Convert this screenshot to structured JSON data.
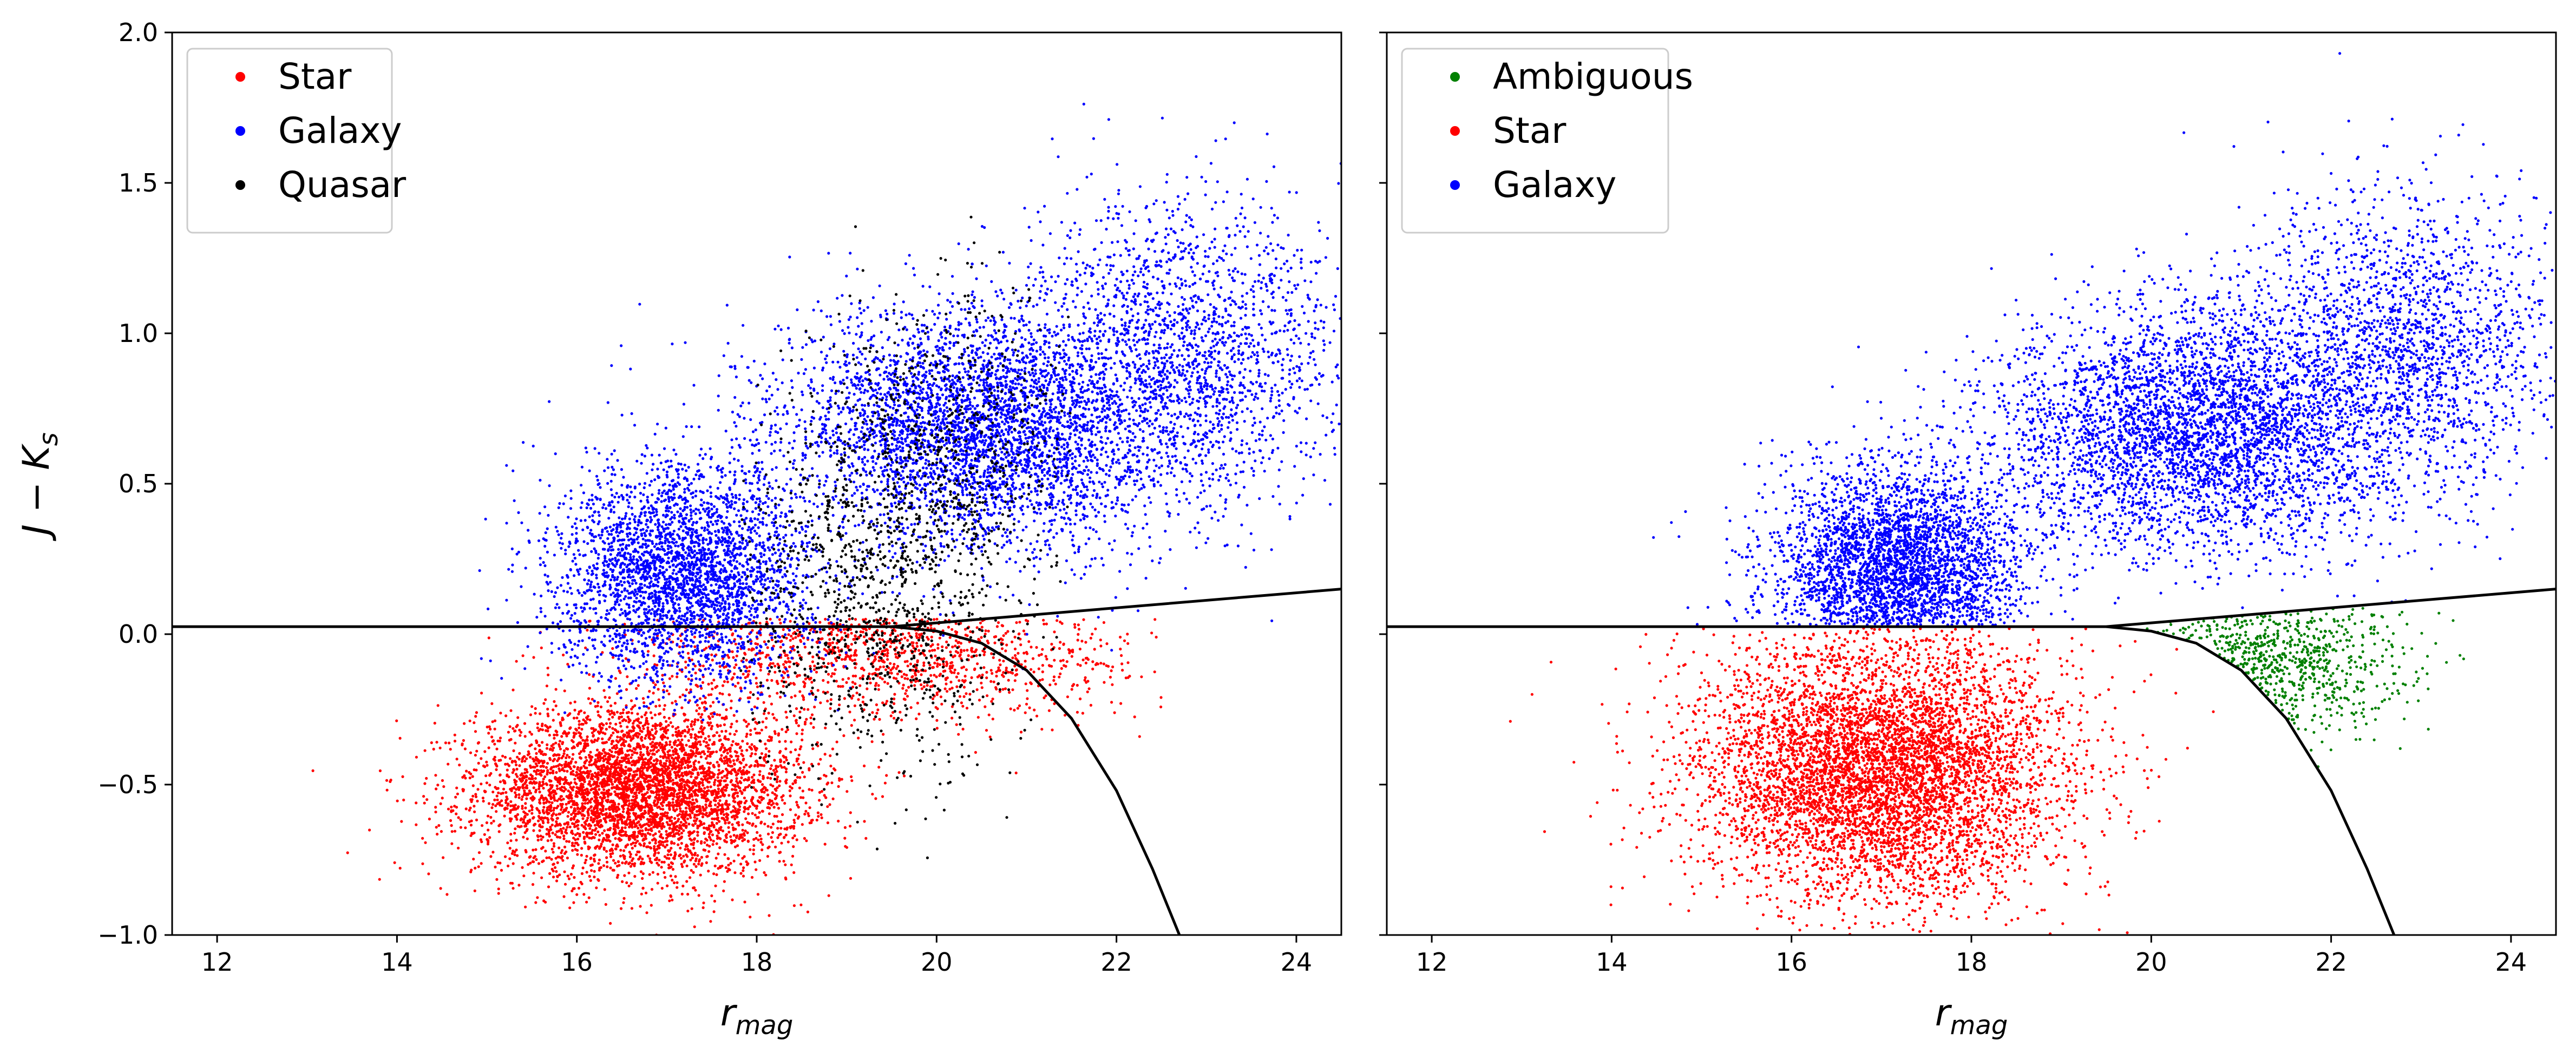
{
  "chart_data": [
    {
      "type": "scatter",
      "panel": "left",
      "xlabel": "r",
      "xlabel_subscript": "mag",
      "ylabel": "J − K",
      "ylabel_subscript": "s",
      "xlim": [
        11.5,
        24.5
      ],
      "ylim": [
        -1.0,
        2.0
      ],
      "xticks": [
        12,
        14,
        16,
        18,
        20,
        22,
        24
      ],
      "yticks": [
        -1.0,
        -0.5,
        0.0,
        0.5,
        1.0,
        1.5,
        2.0
      ],
      "ytick_labels": [
        "−1.0",
        "−0.5",
        "0.0",
        "0.5",
        "1.0",
        "1.5",
        "2.0"
      ],
      "grid": false,
      "legend_position": "top-left",
      "series": [
        {
          "name": "Star",
          "color": "#ff0000",
          "clusters": [
            {
              "x_center": 16.7,
              "y_center": -0.52,
              "x_spread": 0.9,
              "y_spread": 0.14,
              "weight": 0.8
            },
            {
              "x_center": 19.5,
              "y_center": -0.05,
              "x_spread": 1.4,
              "y_spread": 0.12,
              "weight": 0.2
            }
          ],
          "x_range": [
            12.5,
            22.5
          ],
          "y_range": [
            -1.0,
            0.05
          ]
        },
        {
          "name": "Galaxy",
          "color": "#0000ff",
          "clusters": [
            {
              "x_center": 17.2,
              "y_center": 0.2,
              "x_spread": 0.7,
              "y_spread": 0.18,
              "weight": 0.35
            },
            {
              "x_center": 20.5,
              "y_center": 0.68,
              "x_spread": 1.1,
              "y_spread": 0.2,
              "weight": 0.45
            },
            {
              "x_center": 22.8,
              "y_center": 0.95,
              "x_spread": 0.9,
              "y_spread": 0.25,
              "weight": 0.2
            }
          ],
          "x_range": [
            12.0,
            24.5
          ],
          "y_range": [
            -0.3,
            1.95
          ]
        },
        {
          "name": "Quasar",
          "color": "#000000",
          "clusters": [
            {
              "x_center": 19.3,
              "y_center": 0.15,
              "x_spread": 0.8,
              "y_spread": 0.3,
              "weight": 0.7
            },
            {
              "x_center": 20.2,
              "y_center": 0.7,
              "x_spread": 0.7,
              "y_spread": 0.25,
              "weight": 0.3
            }
          ],
          "x_range": [
            17.8,
            21.5
          ],
          "y_range": [
            -0.8,
            1.5
          ]
        }
      ],
      "boundary_lines": [
        {
          "name": "horizontal-cut",
          "points": [
            [
              11.5,
              0.025
            ],
            [
              19.5,
              0.025
            ],
            [
              24.5,
              0.15
            ]
          ]
        },
        {
          "name": "curved-cut",
          "points": [
            [
              19.5,
              0.025
            ],
            [
              20.0,
              0.01
            ],
            [
              20.5,
              -0.03
            ],
            [
              21.0,
              -0.12
            ],
            [
              21.5,
              -0.28
            ],
            [
              22.0,
              -0.52
            ],
            [
              22.4,
              -0.78
            ],
            [
              22.7,
              -1.0
            ]
          ]
        }
      ]
    },
    {
      "type": "scatter",
      "panel": "right",
      "xlabel": "r",
      "xlabel_subscript": "mag",
      "ylabel": "",
      "xlim": [
        11.5,
        24.5
      ],
      "ylim": [
        -1.0,
        2.0
      ],
      "xticks": [
        12,
        14,
        16,
        18,
        20,
        22,
        24
      ],
      "yticks": [
        -1.0,
        -0.5,
        0.0,
        0.5,
        1.0,
        1.5,
        2.0
      ],
      "grid": false,
      "legend_position": "top-left",
      "series": [
        {
          "name": "Ambiguous",
          "color": "#008000",
          "clusters": [
            {
              "x_center": 21.2,
              "y_center": -0.1,
              "x_spread": 0.8,
              "y_spread": 0.12,
              "weight": 1.0
            }
          ],
          "x_range": [
            19.8,
            24.0
          ],
          "y_range": [
            -0.5,
            0.1
          ]
        },
        {
          "name": "Star",
          "color": "#ff0000",
          "clusters": [
            {
              "x_center": 17.0,
              "y_center": -0.45,
              "x_spread": 1.0,
              "y_spread": 0.22,
              "weight": 1.0
            }
          ],
          "x_range": [
            12.5,
            21.0
          ],
          "y_range": [
            -1.0,
            0.02
          ]
        },
        {
          "name": "Galaxy",
          "color": "#0000ff",
          "clusters": [
            {
              "x_center": 17.2,
              "y_center": 0.2,
              "x_spread": 0.7,
              "y_spread": 0.18,
              "weight": 0.35
            },
            {
              "x_center": 20.5,
              "y_center": 0.68,
              "x_spread": 1.1,
              "y_spread": 0.2,
              "weight": 0.45
            },
            {
              "x_center": 22.8,
              "y_center": 0.95,
              "x_spread": 0.9,
              "y_spread": 0.25,
              "weight": 0.2
            }
          ],
          "x_range": [
            12.0,
            24.5
          ],
          "y_range": [
            0.03,
            1.95
          ]
        }
      ],
      "boundary_lines": [
        {
          "name": "horizontal-cut",
          "points": [
            [
              11.5,
              0.025
            ],
            [
              19.5,
              0.025
            ],
            [
              24.5,
              0.15
            ]
          ]
        },
        {
          "name": "curved-cut",
          "points": [
            [
              19.5,
              0.025
            ],
            [
              20.0,
              0.01
            ],
            [
              20.5,
              -0.03
            ],
            [
              21.0,
              -0.12
            ],
            [
              21.5,
              -0.28
            ],
            [
              22.0,
              -0.52
            ],
            [
              22.4,
              -0.78
            ],
            [
              22.7,
              -1.0
            ]
          ]
        }
      ]
    }
  ]
}
